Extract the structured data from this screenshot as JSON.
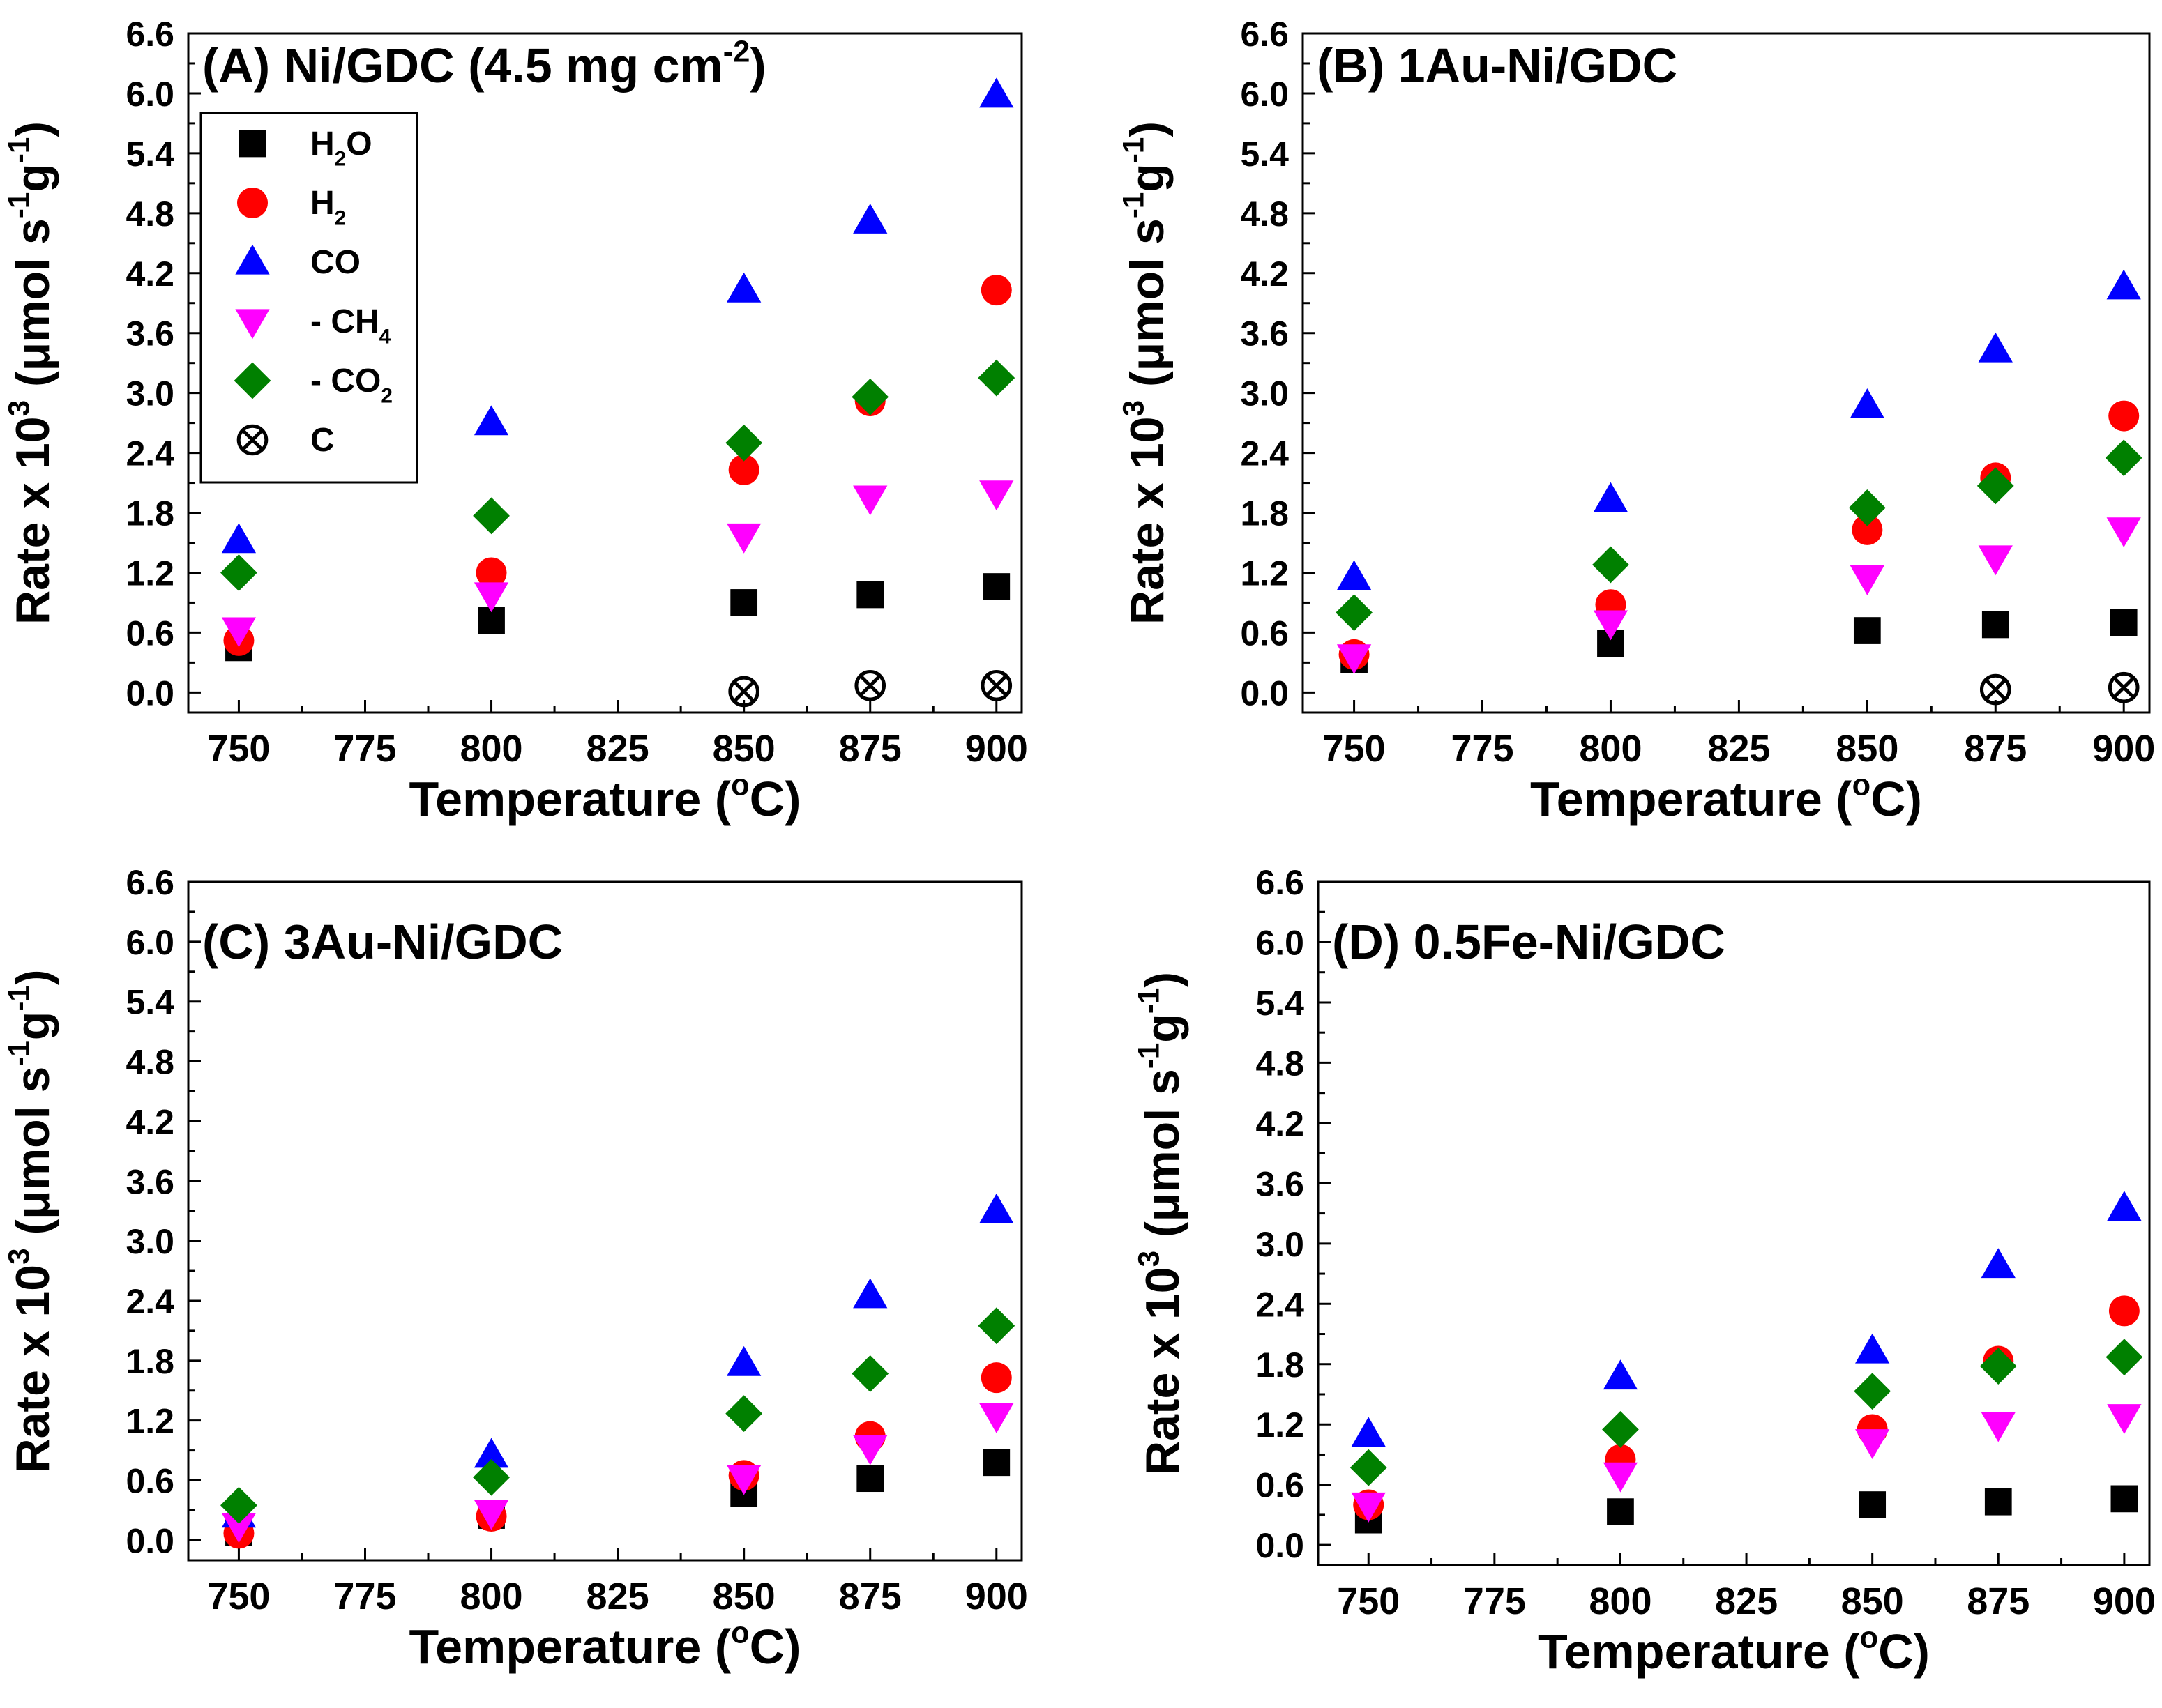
{
  "legend": {
    "entries": [
      {
        "series": "H2O",
        "parts": [
          [
            "H",
            0
          ],
          [
            "2",
            1
          ],
          [
            "O",
            0
          ]
        ]
      },
      {
        "series": "H2",
        "parts": [
          [
            "H",
            0
          ],
          [
            "2",
            1
          ]
        ]
      },
      {
        "series": "CO",
        "parts": [
          [
            "CO",
            0
          ]
        ]
      },
      {
        "series": "-CH4",
        "parts": [
          [
            "- CH",
            0
          ],
          [
            "4",
            1
          ]
        ]
      },
      {
        "series": "-CO2",
        "parts": [
          [
            "- CO",
            0
          ],
          [
            "2",
            1
          ]
        ]
      },
      {
        "series": "C",
        "parts": [
          [
            "C",
            0
          ]
        ]
      }
    ]
  },
  "series_styles": {
    "H2O": {
      "marker": "square",
      "color": "#000000"
    },
    "H2": {
      "marker": "circle",
      "color": "#ff0000"
    },
    "CO": {
      "marker": "triangle-up",
      "color": "#0000ff"
    },
    "-CH4": {
      "marker": "triangle-down",
      "color": "#ff00ff"
    },
    "-CO2": {
      "marker": "diamond",
      "color": "#008000"
    },
    "C": {
      "marker": "crossed-circle",
      "color": "#000000"
    }
  },
  "chart_data": [
    {
      "panel": "A",
      "type": "scatter",
      "title_parts": [
        [
          "(A) Ni/GDC (4.5 mg cm",
          0
        ],
        [
          "-2",
          2
        ],
        [
          ")",
          0
        ]
      ],
      "xlabel_parts": [
        [
          "Temperature (",
          0
        ],
        [
          "o",
          2
        ],
        [
          "C)",
          0
        ]
      ],
      "ylabel_parts": [
        [
          "Rate x 10",
          0
        ],
        [
          "3",
          2
        ],
        [
          " (μmol s",
          0
        ],
        [
          "-1",
          2
        ],
        [
          "g",
          0
        ],
        [
          "-1",
          2
        ],
        [
          ")",
          0
        ]
      ],
      "xlim": [
        740,
        905
      ],
      "ylim": [
        -0.2,
        6.6
      ],
      "xticks": [
        750,
        775,
        800,
        825,
        850,
        875,
        900
      ],
      "yticks": [
        0.0,
        0.6,
        1.2,
        1.8,
        2.4,
        3.0,
        3.6,
        4.2,
        4.8,
        5.4,
        6.0,
        6.6
      ],
      "ytick_labels": [
        "0.0",
        "0.6",
        "1.2",
        "1.8",
        "2.4",
        "3.0",
        "3.6",
        "4.2",
        "4.8",
        "5.4",
        "6.0",
        "6.6"
      ],
      "legend": true,
      "series": [
        {
          "name": "H2O",
          "x": [
            750,
            800,
            850,
            875,
            900
          ],
          "y": [
            0.45,
            0.72,
            0.9,
            0.98,
            1.06
          ]
        },
        {
          "name": "H2",
          "x": [
            750,
            800,
            850,
            875,
            900
          ],
          "y": [
            0.52,
            1.2,
            2.23,
            2.92,
            4.03
          ]
        },
        {
          "name": "CO",
          "x": [
            750,
            800,
            850,
            875,
            900
          ],
          "y": [
            1.52,
            2.7,
            4.03,
            4.72,
            5.98
          ]
        },
        {
          "name": "-CH4",
          "x": [
            750,
            800,
            850,
            875,
            900
          ],
          "y": [
            0.63,
            0.98,
            1.57,
            1.95,
            2.0
          ]
        },
        {
          "name": "-CO2",
          "x": [
            750,
            800,
            850,
            875,
            900
          ],
          "y": [
            1.2,
            1.77,
            2.5,
            2.96,
            3.15
          ]
        },
        {
          "name": "C",
          "x": [
            850,
            875,
            900
          ],
          "y": [
            0.01,
            0.07,
            0.07
          ]
        }
      ]
    },
    {
      "panel": "B",
      "type": "scatter",
      "title_parts": [
        [
          "(B) 1Au-Ni/GDC",
          0
        ]
      ],
      "xlabel_parts": [
        [
          "Temperature (",
          0
        ],
        [
          "o",
          2
        ],
        [
          "C)",
          0
        ]
      ],
      "ylabel_parts": [
        [
          "Rate x 10",
          0
        ],
        [
          "3",
          2
        ],
        [
          " (μmol s",
          0
        ],
        [
          "-1",
          2
        ],
        [
          "g",
          0
        ],
        [
          "-1",
          2
        ],
        [
          ")",
          0
        ]
      ],
      "xlim": [
        740,
        905
      ],
      "ylim": [
        -0.2,
        6.6
      ],
      "xticks": [
        750,
        775,
        800,
        825,
        850,
        875,
        900
      ],
      "yticks": [
        0.0,
        0.6,
        1.2,
        1.8,
        2.4,
        3.0,
        3.6,
        4.2,
        4.8,
        5.4,
        6.0,
        6.6
      ],
      "ytick_labels": [
        "0.0",
        "0.6",
        "1.2",
        "1.8",
        "2.4",
        "3.0",
        "3.6",
        "4.2",
        "4.8",
        "5.4",
        "6.0",
        "6.6"
      ],
      "legend": false,
      "series": [
        {
          "name": "H2O",
          "x": [
            750,
            800,
            850,
            875,
            900
          ],
          "y": [
            0.33,
            0.49,
            0.62,
            0.68,
            0.7
          ]
        },
        {
          "name": "H2",
          "x": [
            750,
            800,
            850,
            875,
            900
          ],
          "y": [
            0.38,
            0.88,
            1.63,
            2.15,
            2.77
          ]
        },
        {
          "name": "CO",
          "x": [
            750,
            800,
            850,
            875,
            900
          ],
          "y": [
            1.15,
            1.93,
            2.87,
            3.43,
            4.06
          ]
        },
        {
          "name": "-CH4",
          "x": [
            750,
            800,
            850,
            875,
            900
          ],
          "y": [
            0.36,
            0.7,
            1.15,
            1.35,
            1.63
          ]
        },
        {
          "name": "-CO2",
          "x": [
            750,
            800,
            850,
            875,
            900
          ],
          "y": [
            0.8,
            1.28,
            1.85,
            2.07,
            2.35
          ]
        },
        {
          "name": "C",
          "x": [
            875,
            900
          ],
          "y": [
            0.03,
            0.05
          ]
        }
      ]
    },
    {
      "panel": "C",
      "type": "scatter",
      "title_parts": [
        [
          "(C) 3Au-Ni/GDC",
          0
        ]
      ],
      "xlabel_parts": [
        [
          "Temperature (",
          0
        ],
        [
          "o",
          2
        ],
        [
          "C)",
          0
        ]
      ],
      "ylabel_parts": [
        [
          "Rate x 10",
          0
        ],
        [
          "3",
          2
        ],
        [
          " (μmol s",
          0
        ],
        [
          "-1",
          2
        ],
        [
          "g",
          0
        ],
        [
          "-1",
          2
        ],
        [
          ")",
          0
        ]
      ],
      "xlim": [
        740,
        905
      ],
      "ylim": [
        -0.2,
        6.6
      ],
      "xticks": [
        750,
        775,
        800,
        825,
        850,
        875,
        900
      ],
      "yticks": [
        0.0,
        0.6,
        1.2,
        1.8,
        2.4,
        3.0,
        3.6,
        4.2,
        4.8,
        5.4,
        6.0,
        6.6
      ],
      "ytick_labels": [
        "0.0",
        "0.6",
        "1.2",
        "1.8",
        "2.4",
        "3.0",
        "3.6",
        "4.2",
        "4.8",
        "5.4",
        "6.0",
        "6.6"
      ],
      "legend": false,
      "series": [
        {
          "name": "H2O",
          "x": [
            750,
            800,
            850,
            875,
            900
          ],
          "y": [
            0.08,
            0.25,
            0.47,
            0.62,
            0.78
          ]
        },
        {
          "name": "H2",
          "x": [
            750,
            800,
            850,
            875,
            900
          ],
          "y": [
            0.07,
            0.24,
            0.65,
            1.04,
            1.63
          ]
        },
        {
          "name": "CO",
          "x": [
            750,
            800,
            850,
            875,
            900
          ],
          "y": [
            0.25,
            0.85,
            1.77,
            2.45,
            3.3
          ]
        },
        {
          "name": "-CH4",
          "x": [
            750,
            800,
            850,
            875,
            900
          ],
          "y": [
            0.15,
            0.28,
            0.63,
            0.93,
            1.25
          ]
        },
        {
          "name": "-CO2",
          "x": [
            750,
            800,
            850,
            875,
            900
          ],
          "y": [
            0.35,
            0.63,
            1.27,
            1.67,
            2.15
          ]
        }
      ]
    },
    {
      "panel": "D",
      "type": "scatter",
      "title_parts": [
        [
          "(D) 0.5Fe-Ni/GDC",
          0
        ]
      ],
      "xlabel_parts": [
        [
          "Temperature (",
          0
        ],
        [
          "o",
          2
        ],
        [
          "C)",
          0
        ]
      ],
      "ylabel_parts": [
        [
          "Rate x 10",
          0
        ],
        [
          "3",
          2
        ],
        [
          " (μmol s",
          0
        ],
        [
          "-1",
          2
        ],
        [
          "g",
          0
        ],
        [
          "-1",
          2
        ],
        [
          ")",
          0
        ]
      ],
      "xlim": [
        740,
        905
      ],
      "ylim": [
        -0.2,
        6.6
      ],
      "xticks": [
        750,
        775,
        800,
        825,
        850,
        875,
        900
      ],
      "yticks": [
        0.0,
        0.6,
        1.2,
        1.8,
        2.4,
        3.0,
        3.6,
        4.2,
        4.8,
        5.4,
        6.0,
        6.6
      ],
      "ytick_labels": [
        "0.0",
        "0.6",
        "1.2",
        "1.8",
        "2.4",
        "3.0",
        "3.6",
        "4.2",
        "4.8",
        "5.4",
        "6.0",
        "6.6"
      ],
      "legend": false,
      "series": [
        {
          "name": "H2O",
          "x": [
            750,
            800,
            850,
            875,
            900
          ],
          "y": [
            0.25,
            0.33,
            0.4,
            0.43,
            0.46
          ]
        },
        {
          "name": "H2",
          "x": [
            750,
            800,
            850,
            875,
            900
          ],
          "y": [
            0.4,
            0.85,
            1.15,
            1.83,
            2.33
          ]
        },
        {
          "name": "CO",
          "x": [
            750,
            800,
            850,
            875,
            900
          ],
          "y": [
            1.1,
            1.67,
            1.93,
            2.78,
            3.35
          ]
        },
        {
          "name": "-CH4",
          "x": [
            750,
            800,
            850,
            875,
            900
          ],
          "y": [
            0.4,
            0.7,
            1.03,
            1.2,
            1.28
          ]
        },
        {
          "name": "-CO2",
          "x": [
            750,
            800,
            850,
            875,
            900
          ],
          "y": [
            0.77,
            1.15,
            1.53,
            1.78,
            1.87
          ]
        }
      ]
    }
  ]
}
